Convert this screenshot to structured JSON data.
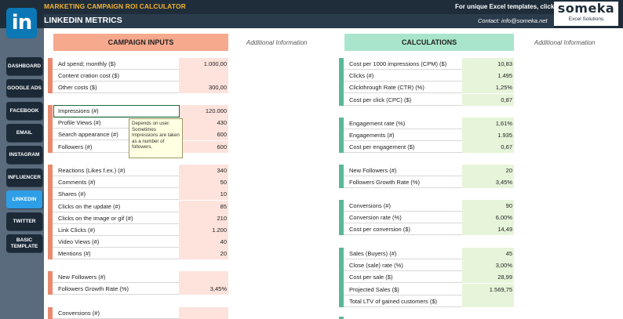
{
  "header": {
    "title": "MARKETING CAMPAIGN ROI CALCULATOR",
    "subtitle": "LINKEDIN METRICS",
    "promo": "For unique Excel templates, click →",
    "contact": "Contact: info@someka.net",
    "brand_name": "someka",
    "brand_tag": "Excel Solutions"
  },
  "logo": {
    "text": "in",
    "color": "#0b77b5"
  },
  "sidebar": {
    "items": [
      {
        "label": "DASHBOARD"
      },
      {
        "label": "GOOGLE ADS"
      },
      {
        "label": "FACEBOOK"
      },
      {
        "label": "EMAIL"
      },
      {
        "label": "INSTAGRAM"
      },
      {
        "label": "INFLUENCER"
      },
      {
        "label": "LINKEDIN"
      },
      {
        "label": "TWITTER"
      },
      {
        "label": "BASIC TEMPLATE"
      }
    ]
  },
  "sections": {
    "inputs_title": "CAMPAIGN INPUTS",
    "calc_title": "CALCULATIONS",
    "additional_info": "Additional Information"
  },
  "inputs": {
    "costs": [
      {
        "label": "Ad spend; monthly ($)",
        "value": "1.000,00"
      },
      {
        "label": "Content cration cost ($)",
        "value": ""
      },
      {
        "label": "Other costs ($)",
        "value": "300,00"
      }
    ],
    "reach": [
      {
        "label": "Impressions (#)",
        "value": "120.000"
      },
      {
        "label": "Profile Views (#)",
        "value": "430"
      },
      {
        "label": "Search appearance (#)",
        "value": "600"
      },
      {
        "label": "Followers (#)",
        "value": "600"
      }
    ],
    "engagement": [
      {
        "label": "Reactions (Likes f.ex.) (#)",
        "value": "340"
      },
      {
        "label": "Comments (#)",
        "value": "50"
      },
      {
        "label": "Shares (#)",
        "value": "10"
      },
      {
        "label": "Clicks on the update (#)",
        "value": "85"
      },
      {
        "label": "Clicks on the image or gif (#)",
        "value": "210"
      },
      {
        "label": "Link Clicks (#)",
        "value": "1.200"
      },
      {
        "label": "Video Views (#)",
        "value": "40"
      },
      {
        "label": "Mentions (#)",
        "value": "20"
      }
    ],
    "followers": [
      {
        "label": "New Followers (#)",
        "value": ""
      },
      {
        "label": "Followers Growth Rate (%)",
        "value": "3,45%"
      }
    ],
    "conversions": [
      {
        "label": "Conversions (#)",
        "value": ""
      }
    ]
  },
  "tooltip": {
    "text": "Depends on user. Sometimes Impressions are taken as a number of followers."
  },
  "calculations": {
    "cost": [
      {
        "label": "Cost per 1000 impressions (CPM) ($)",
        "value": "10,83"
      },
      {
        "label": "Clicks (#)",
        "value": "1.495"
      },
      {
        "label": "Clickthrough Rate (CTR) (%)",
        "value": "1,25%"
      },
      {
        "label": "Cost per click (CPC) ($)",
        "value": "0,87"
      }
    ],
    "engagement": [
      {
        "label": "Engagement rate (%)",
        "value": "1,61%"
      },
      {
        "label": "Engagements (#)",
        "value": "1.935"
      },
      {
        "label": "Cost per engagement ($)",
        "value": "0,67"
      }
    ],
    "followers": [
      {
        "label": "New Followers (#)",
        "value": "20"
      },
      {
        "label": "Followers Growth Rate (%)",
        "value": "3,45%"
      }
    ],
    "conversions": [
      {
        "label": "Conversions (#)",
        "value": "90"
      },
      {
        "label": "Conversion rate (%)",
        "value": "6,00%"
      },
      {
        "label": "Cost per conversion ($)",
        "value": "14,49"
      }
    ],
    "sales": [
      {
        "label": "Sales (Buyers) (#)",
        "value": "45"
      },
      {
        "label": "Close (sale) rate (%)",
        "value": "3,00%"
      },
      {
        "label": "Cost per sale ($)",
        "value": "28,99"
      },
      {
        "label": "Projected Sales ($)",
        "value": "1.569,75"
      },
      {
        "label": "Total LTV of gained customers  ($)",
        "value": ""
      }
    ]
  }
}
